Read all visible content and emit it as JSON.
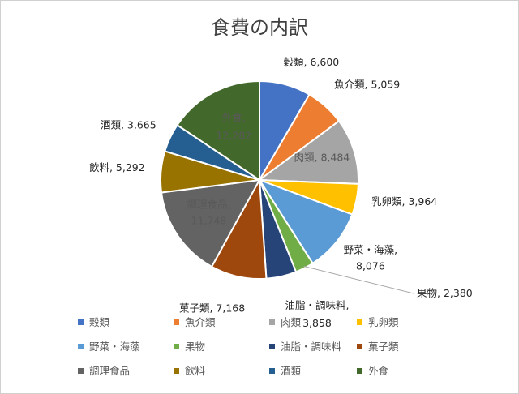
{
  "chart_data": {
    "type": "pie",
    "title": "食費の内訳",
    "categories": [
      "穀類",
      "魚介類",
      "肉類",
      "乳卵類",
      "野菜・海藻",
      "果物",
      "油脂・調味料",
      "菓子類",
      "調理食品",
      "飲料",
      "酒類",
      "外食"
    ],
    "values": [
      6600,
      5059,
      8484,
      3964,
      8076,
      2380,
      3858,
      7168,
      11748,
      5292,
      3665,
      12282
    ],
    "data_labels": [
      "穀類, 6,600",
      "魚介類, 5,059",
      "肉類, 8,484",
      "乳卵類, 3,964",
      "野菜・海藻, 8,076",
      "果物, 2,380",
      "油脂・調味料, 3,858",
      "菓子類, 7,168",
      "調理食品, 11,748",
      "飲料, 5,292",
      "酒類, 3,665",
      "外食, 12,282"
    ],
    "colors": [
      "#4472C4",
      "#ED7D31",
      "#A5A5A5",
      "#FFC000",
      "#5B9BD5",
      "#70AD47",
      "#264478",
      "#9E480E",
      "#636363",
      "#997300",
      "#255E91",
      "#43682B"
    ],
    "legend_position": "bottom"
  }
}
